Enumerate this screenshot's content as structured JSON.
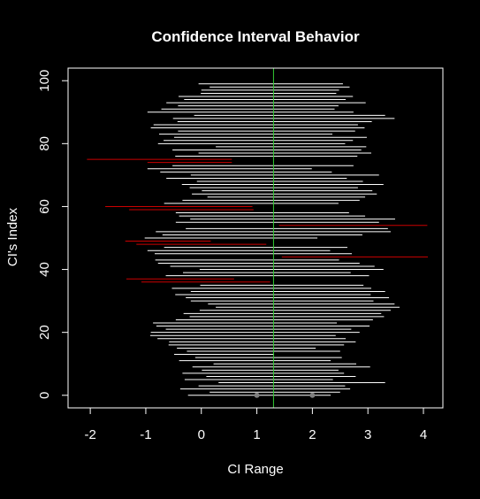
{
  "chart_data": {
    "type": "scatter",
    "title": "Confidence Interval Behavior",
    "xlabel": "CI Range",
    "ylabel": "CI's Index",
    "xlim": [
      -2.4,
      4.35
    ],
    "ylim": [
      -4,
      104
    ],
    "x_ticks": [
      -2,
      -1,
      0,
      1,
      2,
      3,
      4
    ],
    "y_ticks": [
      0,
      20,
      40,
      60,
      80,
      100
    ],
    "reference_line": {
      "x": 1.3,
      "color": "#33cc33"
    },
    "endpoint_markers": [
      {
        "x": 1.0,
        "y": 0
      },
      {
        "x": 2.0,
        "y": 0
      }
    ],
    "colors": {
      "covering": "#ffffff",
      "missing": "#cc0000",
      "background": "#000000",
      "frame": "#ffffff"
    },
    "series": [
      {
        "values": [
          {
            "index": 1,
            "lower": -0.24,
            "upper": 2.33
          },
          {
            "index": 2,
            "lower": 0.15,
            "upper": 2.5
          },
          {
            "index": 3,
            "lower": -0.38,
            "upper": 2.68
          },
          {
            "index": 4,
            "lower": -0.05,
            "upper": 2.59
          },
          {
            "index": 5,
            "lower": 0.31,
            "upper": 3.31
          },
          {
            "index": 6,
            "lower": -0.3,
            "upper": 2.37
          },
          {
            "index": 7,
            "lower": 0.09,
            "upper": 2.78
          },
          {
            "index": 8,
            "lower": -0.34,
            "upper": 2.57
          },
          {
            "index": 9,
            "lower": 0.01,
            "upper": 2.47
          },
          {
            "index": 10,
            "lower": -0.16,
            "upper": 3.04
          },
          {
            "index": 11,
            "lower": 0.22,
            "upper": 2.79
          },
          {
            "index": 12,
            "lower": -0.4,
            "upper": 2.33
          },
          {
            "index": 13,
            "lower": -0.11,
            "upper": 2.53
          },
          {
            "index": 14,
            "lower": -0.49,
            "upper": 1.31
          },
          {
            "index": 15,
            "lower": -0.26,
            "upper": 2.5
          },
          {
            "index": 16,
            "lower": -0.44,
            "upper": 2.06
          },
          {
            "index": 17,
            "lower": -0.59,
            "upper": 2.57
          },
          {
            "index": 18,
            "lower": -0.58,
            "upper": 2.78
          },
          {
            "index": 19,
            "lower": -0.79,
            "upper": 2.6
          },
          {
            "index": 20,
            "lower": -0.92,
            "upper": 2.42
          },
          {
            "index": 21,
            "lower": -0.91,
            "upper": 2.85
          },
          {
            "index": 22,
            "lower": -0.64,
            "upper": 2.7
          },
          {
            "index": 23,
            "lower": -0.81,
            "upper": 3.03
          },
          {
            "index": 24,
            "lower": -0.87,
            "upper": 2.44
          },
          {
            "index": 25,
            "lower": -0.46,
            "upper": 3.09
          },
          {
            "index": 26,
            "lower": -0.21,
            "upper": 3.29
          },
          {
            "index": 27,
            "lower": -0.32,
            "upper": 3.24
          },
          {
            "index": 28,
            "lower": -0.03,
            "upper": 3.41
          },
          {
            "index": 29,
            "lower": 0.26,
            "upper": 3.57
          },
          {
            "index": 30,
            "lower": 0.12,
            "upper": 3.48
          },
          {
            "index": 31,
            "lower": -0.19,
            "upper": 3.1
          },
          {
            "index": 32,
            "lower": -0.28,
            "upper": 3.38
          },
          {
            "index": 33,
            "lower": -0.47,
            "upper": 3.05
          },
          {
            "index": 34,
            "lower": -0.19,
            "upper": 3.31
          },
          {
            "index": 35,
            "lower": -0.53,
            "upper": 3.06
          },
          {
            "index": 36,
            "lower": -0.02,
            "upper": 2.92
          },
          {
            "index": 37,
            "lower": -1.08,
            "upper": 1.24
          },
          {
            "index": 38,
            "lower": -1.35,
            "upper": 0.59
          },
          {
            "index": 39,
            "lower": -0.64,
            "upper": 3.02
          },
          {
            "index": 40,
            "lower": -0.33,
            "upper": 2.69
          },
          {
            "index": 41,
            "lower": -0.03,
            "upper": 3.28
          },
          {
            "index": 42,
            "lower": -0.56,
            "upper": 3.12
          },
          {
            "index": 43,
            "lower": -0.78,
            "upper": 2.85
          },
          {
            "index": 44,
            "lower": -0.83,
            "upper": 2.48
          },
          {
            "index": 45,
            "lower": 1.45,
            "upper": 4.08
          },
          {
            "index": 46,
            "lower": -0.84,
            "upper": 2.71
          },
          {
            "index": 47,
            "lower": -0.97,
            "upper": 2.32
          },
          {
            "index": 48,
            "lower": -0.67,
            "upper": 2.63
          },
          {
            "index": 49,
            "lower": -1.17,
            "upper": 1.17
          },
          {
            "index": 50,
            "lower": -1.37,
            "upper": 0.17
          },
          {
            "index": 51,
            "lower": -1.02,
            "upper": 2.09
          },
          {
            "index": 52,
            "lower": -0.7,
            "upper": 2.9
          },
          {
            "index": 53,
            "lower": -0.82,
            "upper": 3.41
          },
          {
            "index": 54,
            "lower": -0.28,
            "upper": 3.36
          },
          {
            "index": 55,
            "lower": 1.4,
            "upper": 4.07
          },
          {
            "index": 56,
            "lower": -0.46,
            "upper": 3.2
          },
          {
            "index": 57,
            "lower": -0.2,
            "upper": 3.49
          },
          {
            "index": 58,
            "lower": -0.4,
            "upper": 2.95
          },
          {
            "index": 59,
            "lower": -0.46,
            "upper": 2.66
          },
          {
            "index": 60,
            "lower": -1.3,
            "upper": 0.94
          },
          {
            "index": 61,
            "lower": -1.73,
            "upper": 0.92
          },
          {
            "index": 62,
            "lower": -0.67,
            "upper": 2.47
          },
          {
            "index": 63,
            "lower": -0.34,
            "upper": 2.85
          },
          {
            "index": 64,
            "lower": 0.11,
            "upper": 2.95
          },
          {
            "index": 65,
            "lower": -0.17,
            "upper": 3.16
          },
          {
            "index": 66,
            "lower": 0.01,
            "upper": 3.08
          },
          {
            "index": 67,
            "lower": -0.21,
            "upper": 2.82
          },
          {
            "index": 68,
            "lower": -0.35,
            "upper": 3.28
          },
          {
            "index": 69,
            "lower": -0.08,
            "upper": 2.91
          },
          {
            "index": 70,
            "lower": -0.63,
            "upper": 2.62
          },
          {
            "index": 71,
            "lower": -0.19,
            "upper": 3.2
          },
          {
            "index": 72,
            "lower": -0.74,
            "upper": 2.35
          },
          {
            "index": 73,
            "lower": -0.97,
            "upper": 1.99
          },
          {
            "index": 74,
            "lower": -0.52,
            "upper": 2.74
          },
          {
            "index": 75,
            "lower": -0.97,
            "upper": 0.55
          },
          {
            "index": 76,
            "lower": -2.06,
            "upper": 0.55
          },
          {
            "index": 77,
            "lower": -0.47,
            "upper": 2.81
          },
          {
            "index": 78,
            "lower": -0.05,
            "upper": 3.06
          },
          {
            "index": 79,
            "lower": -0.52,
            "upper": 2.88
          },
          {
            "index": 80,
            "lower": 0.26,
            "upper": 2.97
          },
          {
            "index": 81,
            "lower": -0.78,
            "upper": 2.59
          },
          {
            "index": 82,
            "lower": -0.68,
            "upper": 2.73
          },
          {
            "index": 83,
            "lower": -0.49,
            "upper": 2.98
          },
          {
            "index": 84,
            "lower": -0.76,
            "upper": 2.36
          },
          {
            "index": 85,
            "lower": -0.42,
            "upper": 2.77
          },
          {
            "index": 86,
            "lower": -0.91,
            "upper": 2.94
          },
          {
            "index": 87,
            "lower": -0.86,
            "upper": 2.82
          },
          {
            "index": 88,
            "lower": -0.43,
            "upper": 3.07
          },
          {
            "index": 89,
            "lower": -0.51,
            "upper": 3.48
          },
          {
            "index": 90,
            "lower": -0.13,
            "upper": 3.31
          },
          {
            "index": 91,
            "lower": -0.97,
            "upper": 2.74
          },
          {
            "index": 92,
            "lower": -0.72,
            "upper": 2.4
          },
          {
            "index": 93,
            "lower": -0.42,
            "upper": 2.47
          },
          {
            "index": 94,
            "lower": -0.63,
            "upper": 2.96
          },
          {
            "index": 95,
            "lower": -0.31,
            "upper": 2.6
          },
          {
            "index": 96,
            "lower": -0.41,
            "upper": 2.73
          },
          {
            "index": 97,
            "lower": -0.01,
            "upper": 2.43
          },
          {
            "index": 98,
            "lower": 0.0,
            "upper": 2.48
          },
          {
            "index": 99,
            "lower": 0.15,
            "upper": 2.67
          },
          {
            "index": 100,
            "lower": -0.05,
            "upper": 2.55
          }
        ]
      }
    ]
  }
}
